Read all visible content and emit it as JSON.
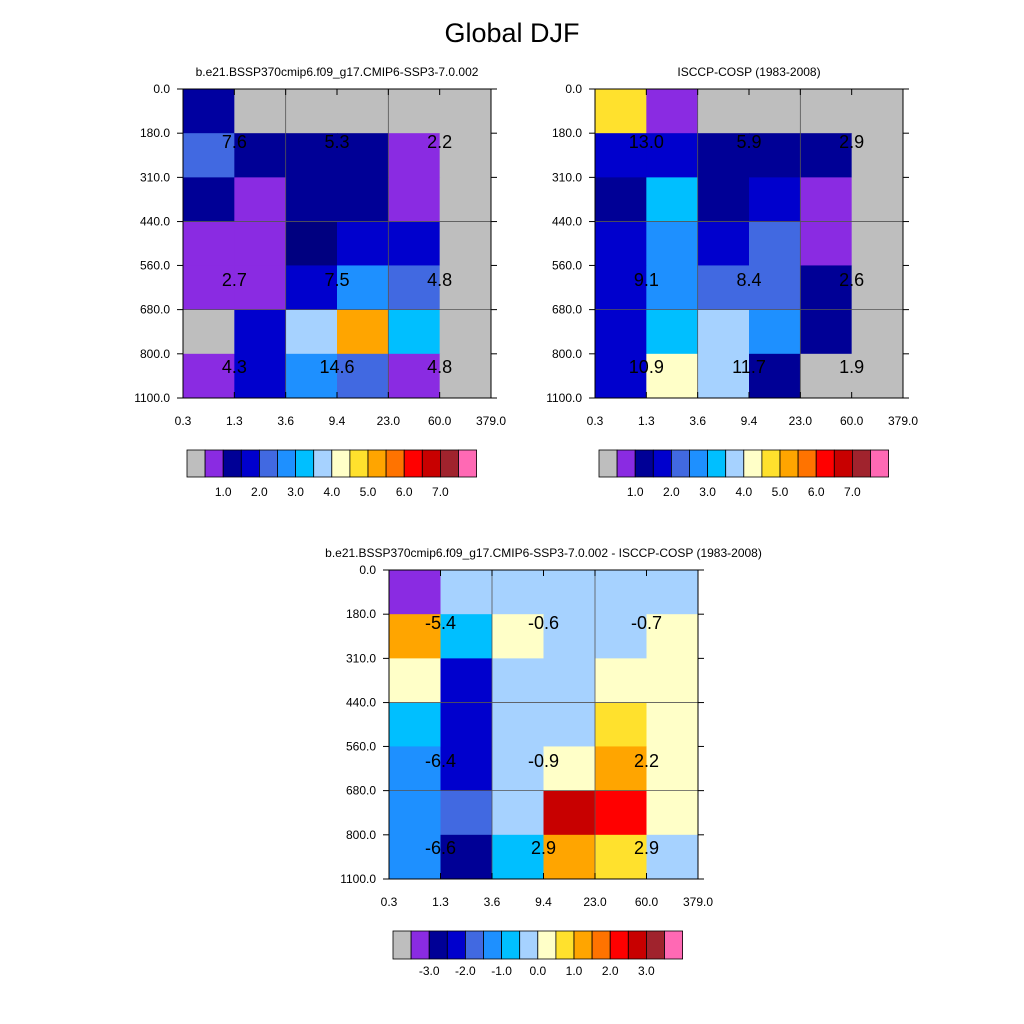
{
  "page": {
    "title": "Global DJF"
  },
  "chart_data": [
    {
      "type": "heatmap",
      "title": "b.e21.BSSP370cmip6.f09_g17.CMIP6-SSP3-7.0.002",
      "x_edges": [
        "0.3",
        "1.3",
        "3.6",
        "9.4",
        "23.0",
        "60.0",
        "379.0"
      ],
      "y_edges": [
        "0.0",
        "180.0",
        "310.0",
        "440.0",
        "560.0",
        "680.0",
        "800.0",
        "1100.0"
      ],
      "cells": [
        [
          "#0000A0",
          "#BEBEBE",
          "#BEBEBE",
          "#BEBEBE",
          "#BEBEBE",
          "#BEBEBE"
        ],
        [
          "#4169E1",
          "#000096",
          "#000096",
          "#000096",
          "#8A2BE2",
          "#BEBEBE"
        ],
        [
          "#000096",
          "#8A2BE2",
          "#000096",
          "#000096",
          "#8A2BE2",
          "#BEBEBE"
        ],
        [
          "#8A2BE2",
          "#8A2BE2",
          "#000080",
          "#0000CD",
          "#0000CD",
          "#BEBEBE"
        ],
        [
          "#8A2BE2",
          "#8A2BE2",
          "#0000CD",
          "#1E90FF",
          "#4169E1",
          "#BEBEBE"
        ],
        [
          "#BEBEBE",
          "#0000CD",
          "#A6D2FF",
          "#FFA500",
          "#00BFFF",
          "#BEBEBE"
        ],
        [
          "#8A2BE2",
          "#0000CD",
          "#1E90FF",
          "#4169E1",
          "#8A2BE2",
          "#BEBEBE"
        ]
      ],
      "labels": [
        {
          "col": 1,
          "row": 1,
          "text": "7.6"
        },
        {
          "col": 3,
          "row": 1,
          "text": "5.3"
        },
        {
          "col": 5,
          "row": 1,
          "text": "2.2"
        },
        {
          "col": 1,
          "row": 4,
          "text": "2.7"
        },
        {
          "col": 3,
          "row": 4,
          "text": "7.5"
        },
        {
          "col": 5,
          "row": 4,
          "text": "4.8"
        },
        {
          "col": 1,
          "row": 6,
          "text": "4.3"
        },
        {
          "col": 3,
          "row": 6,
          "text": "14.6"
        },
        {
          "col": 5,
          "row": 6,
          "text": "4.8"
        }
      ],
      "colorbar": {
        "colors": [
          "#BEBEBE",
          "#8A2BE2",
          "#000096",
          "#0000CD",
          "#4169E1",
          "#1E90FF",
          "#00BFFF",
          "#A6D2FF",
          "#FFFFC8",
          "#FFE12D",
          "#FFA500",
          "#FF7300",
          "#FF0000",
          "#C80000",
          "#A0232D",
          "#FF69B4"
        ],
        "labels": [
          "1.0",
          "2.0",
          "3.0",
          "4.0",
          "5.0",
          "6.0",
          "7.0"
        ]
      }
    },
    {
      "type": "heatmap",
      "title": "ISCCP-COSP (1983-2008)",
      "x_edges": [
        "0.3",
        "1.3",
        "3.6",
        "9.4",
        "23.0",
        "60.0",
        "379.0"
      ],
      "y_edges": [
        "0.0",
        "180.0",
        "310.0",
        "440.0",
        "560.0",
        "680.0",
        "800.0",
        "1100.0"
      ],
      "cells": [
        [
          "#FFE12D",
          "#8A2BE2",
          "#BEBEBE",
          "#BEBEBE",
          "#BEBEBE",
          "#BEBEBE"
        ],
        [
          "#0000CD",
          "#0000CD",
          "#000096",
          "#000096",
          "#000096",
          "#BEBEBE"
        ],
        [
          "#000096",
          "#00BFFF",
          "#000096",
          "#0000CD",
          "#8A2BE2",
          "#BEBEBE"
        ],
        [
          "#0000CD",
          "#1E90FF",
          "#0000CD",
          "#4169E1",
          "#8A2BE2",
          "#BEBEBE"
        ],
        [
          "#0000CD",
          "#1E90FF",
          "#4169E1",
          "#4169E1",
          "#000096",
          "#BEBEBE"
        ],
        [
          "#0000CD",
          "#00BFFF",
          "#A6D2FF",
          "#1E90FF",
          "#000096",
          "#BEBEBE"
        ],
        [
          "#0000CD",
          "#FFFFC8",
          "#A6D2FF",
          "#000096",
          "#BEBEBE",
          "#BEBEBE"
        ]
      ],
      "labels": [
        {
          "col": 1,
          "row": 1,
          "text": "13.0"
        },
        {
          "col": 3,
          "row": 1,
          "text": "5.9"
        },
        {
          "col": 5,
          "row": 1,
          "text": "2.9"
        },
        {
          "col": 1,
          "row": 4,
          "text": "9.1"
        },
        {
          "col": 3,
          "row": 4,
          "text": "8.4"
        },
        {
          "col": 5,
          "row": 4,
          "text": "2.6"
        },
        {
          "col": 1,
          "row": 6,
          "text": "10.9"
        },
        {
          "col": 3,
          "row": 6,
          "text": "11.7"
        },
        {
          "col": 5,
          "row": 6,
          "text": "1.9"
        }
      ],
      "colorbar": {
        "colors": [
          "#BEBEBE",
          "#8A2BE2",
          "#000096",
          "#0000CD",
          "#4169E1",
          "#1E90FF",
          "#00BFFF",
          "#A6D2FF",
          "#FFFFC8",
          "#FFE12D",
          "#FFA500",
          "#FF7300",
          "#FF0000",
          "#C80000",
          "#A0232D",
          "#FF69B4"
        ],
        "labels": [
          "1.0",
          "2.0",
          "3.0",
          "4.0",
          "5.0",
          "6.0",
          "7.0"
        ]
      }
    },
    {
      "type": "heatmap",
      "title": "b.e21.BSSP370cmip6.f09_g17.CMIP6-SSP3-7.0.002 - ISCCP-COSP (1983-2008)",
      "x_edges": [
        "0.3",
        "1.3",
        "3.6",
        "9.4",
        "23.0",
        "60.0",
        "379.0"
      ],
      "y_edges": [
        "0.0",
        "180.0",
        "310.0",
        "440.0",
        "560.0",
        "680.0",
        "800.0",
        "1100.0"
      ],
      "cells": [
        [
          "#8A2BE2",
          "#A6D2FF",
          "#A6D2FF",
          "#A6D2FF",
          "#A6D2FF",
          "#A6D2FF"
        ],
        [
          "#FFA500",
          "#00BFFF",
          "#FFFFC8",
          "#A6D2FF",
          "#A6D2FF",
          "#FFFFC8"
        ],
        [
          "#FFFFC8",
          "#0000CD",
          "#A6D2FF",
          "#A6D2FF",
          "#FFFFC8",
          "#FFFFC8"
        ],
        [
          "#00BFFF",
          "#0000CD",
          "#A6D2FF",
          "#A6D2FF",
          "#FFE12D",
          "#FFFFC8"
        ],
        [
          "#1E90FF",
          "#0000CD",
          "#A6D2FF",
          "#FFFFC8",
          "#FFA500",
          "#FFFFC8"
        ],
        [
          "#1E90FF",
          "#4169E1",
          "#A6D2FF",
          "#C80000",
          "#FF0000",
          "#FFFFC8"
        ],
        [
          "#1E90FF",
          "#000096",
          "#00BFFF",
          "#FFA500",
          "#FFE12D",
          "#A6D2FF"
        ]
      ],
      "labels": [
        {
          "col": 1,
          "row": 1,
          "text": "-5.4"
        },
        {
          "col": 3,
          "row": 1,
          "text": "-0.6"
        },
        {
          "col": 5,
          "row": 1,
          "text": "-0.7"
        },
        {
          "col": 1,
          "row": 4,
          "text": "-6.4"
        },
        {
          "col": 3,
          "row": 4,
          "text": "-0.9"
        },
        {
          "col": 5,
          "row": 4,
          "text": "2.2"
        },
        {
          "col": 1,
          "row": 6,
          "text": "-6.6"
        },
        {
          "col": 3,
          "row": 6,
          "text": "2.9"
        },
        {
          "col": 5,
          "row": 6,
          "text": "2.9"
        }
      ],
      "colorbar": {
        "colors": [
          "#BEBEBE",
          "#8A2BE2",
          "#000096",
          "#0000CD",
          "#4169E1",
          "#1E90FF",
          "#00BFFF",
          "#A6D2FF",
          "#FFFFC8",
          "#FFE12D",
          "#FFA500",
          "#FF7300",
          "#FF0000",
          "#C80000",
          "#A0232D",
          "#FF69B4"
        ],
        "labels": [
          "-3.0",
          "-2.0",
          "-1.0",
          "0.0",
          "1.0",
          "2.0",
          "3.0"
        ]
      }
    }
  ]
}
